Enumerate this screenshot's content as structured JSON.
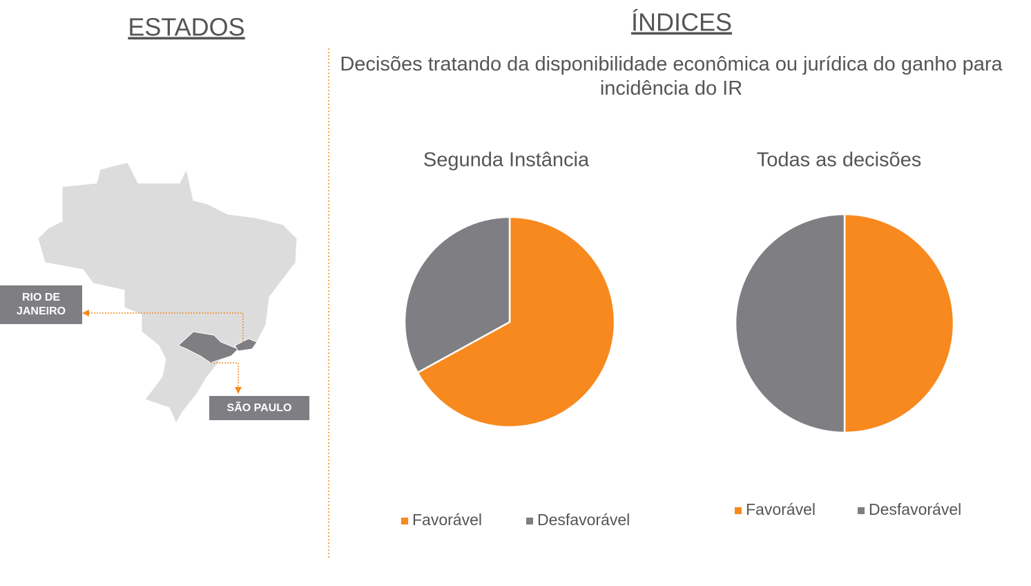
{
  "header": {
    "left_title": "ESTADOS",
    "right_title": "ÍNDICES",
    "subtitle": "Decisões tratando da disponibilidade econômica ou jurídica do ganho para incidência do IR"
  },
  "map": {
    "labels": [
      "RIO DE JANEIRO",
      "SÃO PAULO"
    ]
  },
  "chart_data": [
    {
      "type": "pie",
      "title": "Segunda Instância",
      "categories": [
        "Favorável",
        "Desfavorável"
      ],
      "values": [
        67,
        33
      ],
      "colors": [
        "#f7891f",
        "#7f7f83"
      ]
    },
    {
      "type": "pie",
      "title": "Todas as decisões",
      "categories": [
        "Favorável",
        "Desfavorável"
      ],
      "values": [
        50,
        50
      ],
      "colors": [
        "#f7891f",
        "#7f7f83"
      ]
    }
  ]
}
